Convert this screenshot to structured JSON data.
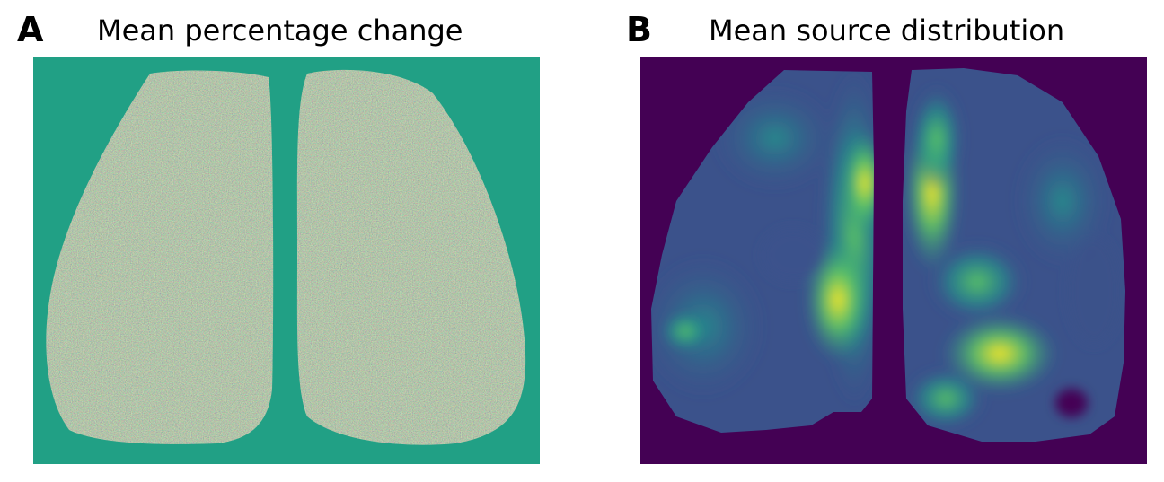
{
  "panels": [
    {
      "letter": "A",
      "title": "Mean percentage change"
    },
    {
      "letter": "B",
      "title": "Mean source distribution"
    }
  ],
  "colors": {
    "viridis_mid": "#21a085",
    "viridis_low": "#440154",
    "viridis_high": "#fde725"
  },
  "chart_data": [
    {
      "type": "heatmap",
      "title": "Mean percentage change",
      "colormap": "viridis",
      "background_value_color": "#21a085",
      "axes": "off",
      "content": "noisy pixel map of two lung-shaped regions"
    },
    {
      "type": "heatmap",
      "title": "Mean source distribution",
      "colormap": "viridis",
      "background_value_color": "#440154",
      "axes": "off",
      "content": "smooth map of two lung-shaped regions with bright hotspots near the central gap"
    }
  ]
}
